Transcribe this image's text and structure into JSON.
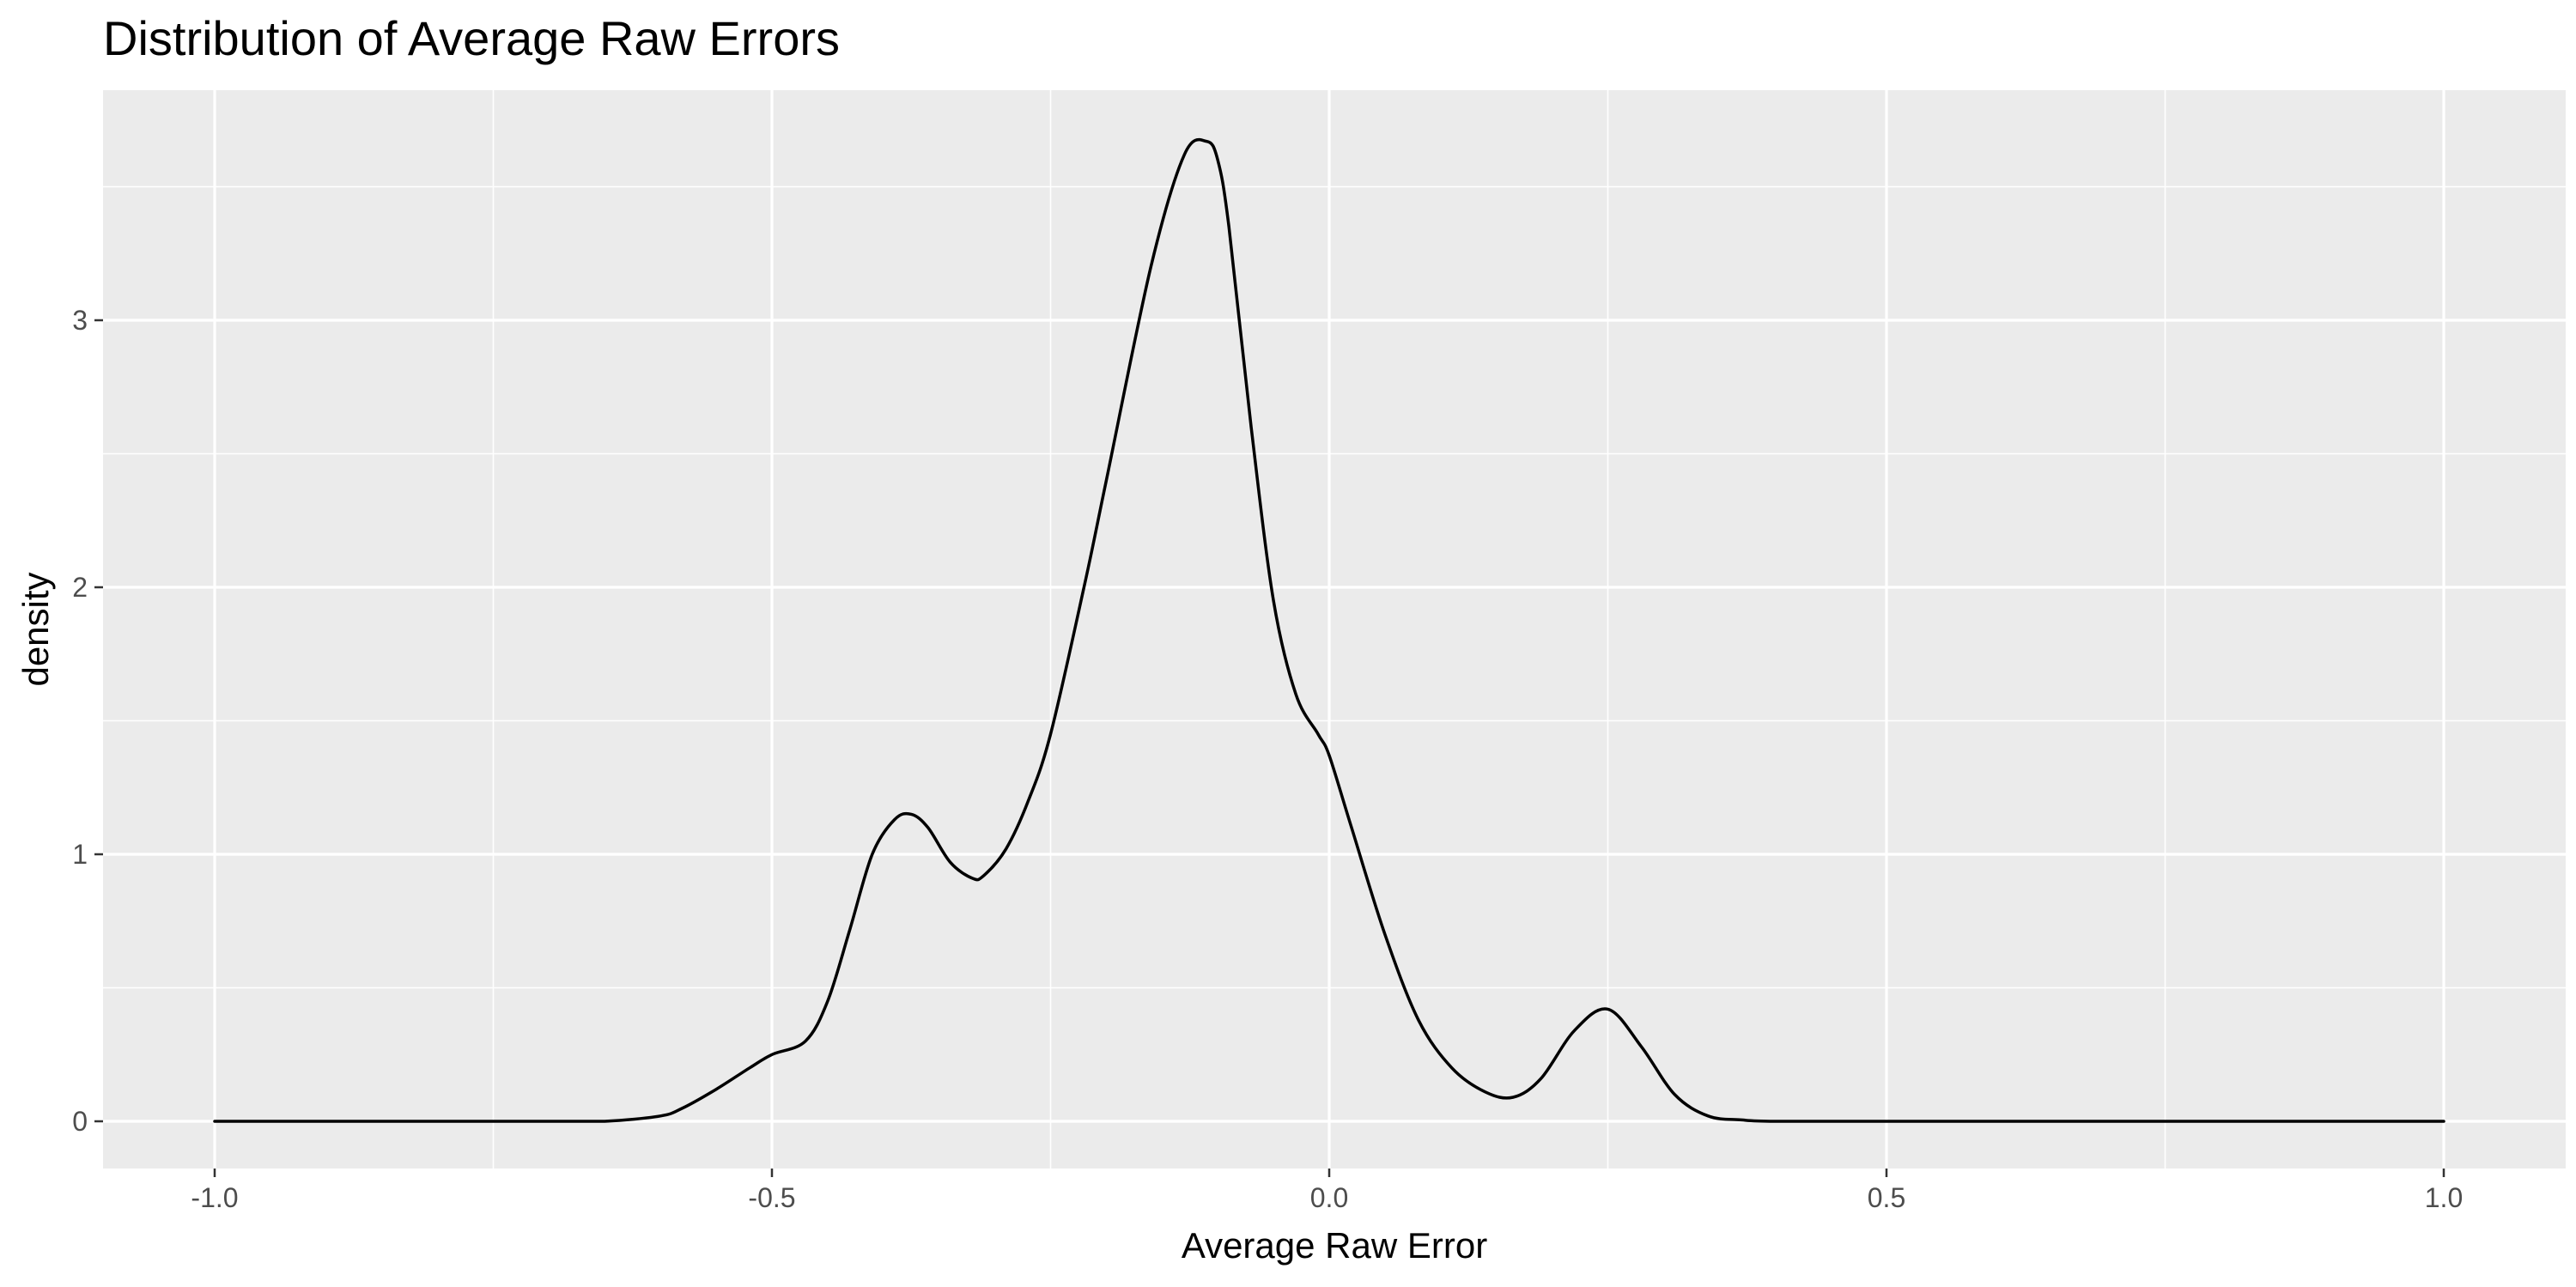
{
  "chart_data": {
    "type": "area",
    "geom": "density",
    "title": "Distribution of Average Raw Errors",
    "xlabel": "Average Raw Error",
    "ylabel": "density",
    "xlim": [
      -1.1,
      1.1
    ],
    "ylim": [
      -0.18,
      3.8
    ],
    "x_ticks": [
      {
        "value": -1.0,
        "label": "-1.0"
      },
      {
        "value": -0.5,
        "label": "-0.5"
      },
      {
        "value": 0.0,
        "label": "0.0"
      },
      {
        "value": 0.5,
        "label": "0.5"
      },
      {
        "value": 1.0,
        "label": "1.0"
      }
    ],
    "y_ticks": [
      {
        "value": 0,
        "label": "0"
      },
      {
        "value": 1,
        "label": "1"
      },
      {
        "value": 2,
        "label": "2"
      },
      {
        "value": 3,
        "label": "3"
      }
    ],
    "grid": true,
    "legend": "none",
    "series": [
      {
        "x": [
          -1.0,
          -0.7,
          -0.65,
          -0.6,
          -0.58,
          -0.55,
          -0.52,
          -0.5,
          -0.47,
          -0.45,
          -0.43,
          -0.41,
          -0.39,
          -0.375,
          -0.36,
          -0.34,
          -0.32,
          -0.31,
          -0.29,
          -0.27,
          -0.25,
          -0.22,
          -0.2,
          -0.16,
          -0.13,
          -0.11,
          -0.1,
          -0.09,
          -0.07,
          -0.05,
          -0.03,
          -0.01,
          0.0,
          0.02,
          0.05,
          0.08,
          0.11,
          0.14,
          0.165,
          0.19,
          0.22,
          0.25,
          0.28,
          0.31,
          0.34,
          0.37,
          0.4,
          0.5,
          1.0
        ],
        "y": [
          0.0,
          0.0,
          0.0,
          0.02,
          0.05,
          0.12,
          0.2,
          0.25,
          0.3,
          0.45,
          0.72,
          1.0,
          1.13,
          1.15,
          1.1,
          0.97,
          0.91,
          0.92,
          1.02,
          1.2,
          1.45,
          2.0,
          2.4,
          3.2,
          3.62,
          3.67,
          3.6,
          3.35,
          2.6,
          1.95,
          1.6,
          1.45,
          1.37,
          1.1,
          0.7,
          0.38,
          0.2,
          0.11,
          0.09,
          0.16,
          0.34,
          0.42,
          0.28,
          0.1,
          0.02,
          0.005,
          0.0,
          0.0,
          0.0
        ]
      }
    ]
  }
}
